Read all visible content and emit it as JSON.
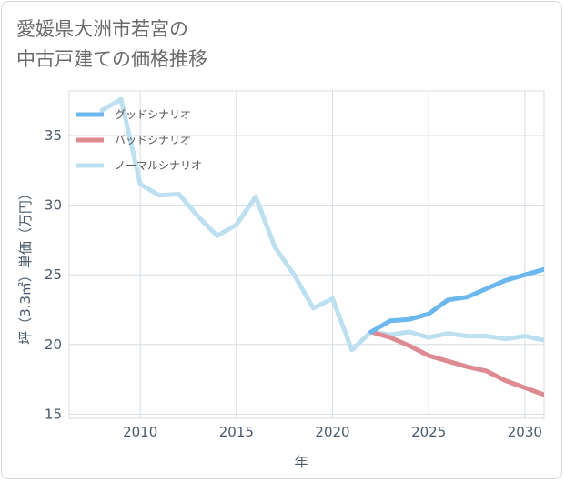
{
  "title_lines": [
    "愛媛県大洲市若宮の",
    "中古戸建ての価格推移"
  ],
  "chart_data": {
    "type": "line",
    "title": "愛媛県大洲市若宮の中古戸建ての価格推移",
    "xlabel": "年",
    "ylabel": "坪（3.3㎡）単価（万円）",
    "xlim": [
      2006.3,
      2031
    ],
    "ylim": [
      14.7,
      38.2
    ],
    "xticks": [
      2010,
      2015,
      2020,
      2025,
      2030
    ],
    "yticks": [
      15,
      20,
      25,
      30,
      35
    ],
    "legend_position": "top-left",
    "series": [
      {
        "name": "グッドシナリオ",
        "color": "#6cb8ee",
        "x": [
          2022,
          2023,
          2024,
          2025,
          2026,
          2027,
          2028,
          2029,
          2030,
          2031
        ],
        "y": [
          20.9,
          21.7,
          21.8,
          22.2,
          23.2,
          23.4,
          24.0,
          24.6,
          25.0,
          25.4
        ]
      },
      {
        "name": "バッドシナリオ",
        "color": "#de8a92",
        "x": [
          2022,
          2023,
          2024,
          2025,
          2026,
          2027,
          2028,
          2029,
          2030,
          2031
        ],
        "y": [
          20.9,
          20.5,
          19.9,
          19.2,
          18.8,
          18.4,
          18.1,
          17.4,
          16.9,
          16.4
        ]
      },
      {
        "name": "ノーマルシナリオ",
        "color": "#bde0f0",
        "x": [
          2008,
          2009,
          2010,
          2011,
          2012,
          2013,
          2014,
          2015,
          2016,
          2017,
          2018,
          2019,
          2020,
          2021,
          2022,
          2023,
          2024,
          2025,
          2026,
          2027,
          2028,
          2029,
          2030,
          2031
        ],
        "y": [
          36.8,
          37.6,
          31.5,
          30.7,
          30.8,
          29.2,
          27.8,
          28.6,
          30.6,
          27.0,
          25.0,
          22.6,
          23.3,
          19.6,
          20.9,
          20.7,
          20.9,
          20.5,
          20.8,
          20.6,
          20.6,
          20.4,
          20.6,
          20.3
        ]
      }
    ]
  }
}
